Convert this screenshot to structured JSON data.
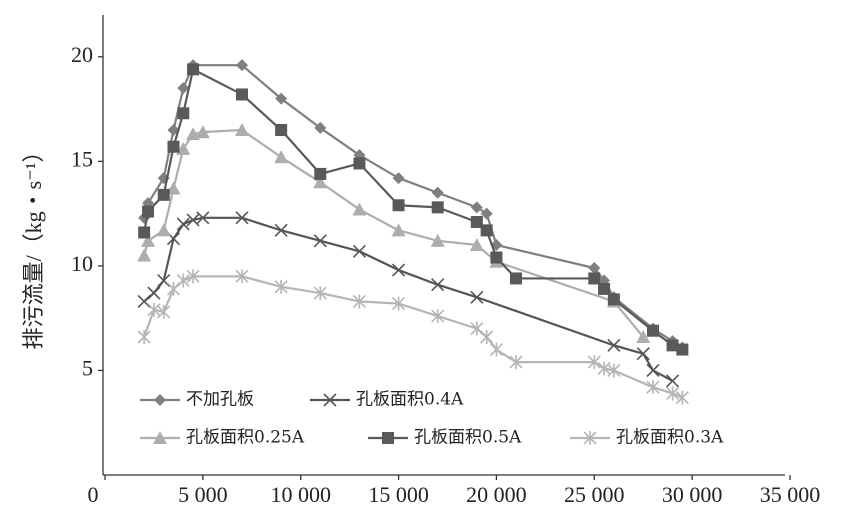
{
  "chart_data": {
    "type": "line",
    "y_label": "排污流量/（kg・s⁻¹）",
    "xlim": [
      0,
      35000
    ],
    "ylim": [
      0,
      22
    ],
    "xticks": [
      0,
      {
        "value": 5000,
        "label": "5 000"
      },
      {
        "value": 10000,
        "label": "10 000"
      },
      {
        "value": 15000,
        "label": "15 000"
      },
      {
        "value": 20000,
        "label": "20 000"
      },
      {
        "value": 25000,
        "label": "25 000"
      },
      {
        "value": 30000,
        "label": "30 000"
      },
      {
        "value": 35000,
        "label": "35 000"
      }
    ],
    "yticks": [
      5,
      10,
      15,
      20
    ],
    "grid": false,
    "series": [
      {
        "name": "不加孔板",
        "color": "#7f7f7f",
        "marker": "diamond",
        "x": [
          2000,
          2200,
          3000,
          3500,
          4000,
          4500,
          7000,
          9000,
          11000,
          13000,
          15000,
          17000,
          19000,
          19500,
          20000,
          25000,
          25500,
          26000,
          28000,
          29000,
          29500
        ],
        "values": [
          12.3,
          13.0,
          14.2,
          16.5,
          18.5,
          19.6,
          19.6,
          18.0,
          16.6,
          15.3,
          14.2,
          13.5,
          12.8,
          12.5,
          11.0,
          9.9,
          9.3,
          8.5,
          7.0,
          6.4,
          6.1
        ]
      },
      {
        "name": "孔板面积0.4A",
        "color": "#555555",
        "marker": "x",
        "x": [
          2000,
          2500,
          3000,
          3500,
          4000,
          4500,
          5000,
          7000,
          9000,
          11000,
          13000,
          15000,
          17000,
          19000,
          26000,
          27500,
          28000,
          29000
        ],
        "values": [
          8.3,
          8.7,
          9.3,
          11.3,
          12.0,
          12.2,
          12.3,
          12.3,
          11.7,
          11.2,
          10.7,
          9.8,
          9.1,
          8.5,
          6.2,
          5.8,
          5.0,
          4.5
        ]
      },
      {
        "name": "孔板面积0.25A",
        "color": "#adadad",
        "marker": "triangle",
        "x": [
          2000,
          2200,
          3000,
          3500,
          4000,
          4500,
          5000,
          7000,
          9000,
          11000,
          13000,
          15000,
          17000,
          19000,
          20000,
          26000,
          27500
        ],
        "values": [
          10.5,
          11.2,
          11.7,
          13.7,
          15.6,
          16.3,
          16.4,
          16.5,
          15.2,
          14.0,
          12.7,
          11.7,
          11.2,
          11.0,
          10.2,
          8.3,
          6.6
        ]
      },
      {
        "name": "孔板面积0.5A",
        "color": "#595959",
        "marker": "square",
        "x": [
          2000,
          2200,
          3000,
          3500,
          4000,
          4500,
          7000,
          9000,
          11000,
          13000,
          15000,
          17000,
          19000,
          19500,
          20000,
          21000,
          25000,
          25500,
          26000,
          28000,
          29000,
          29500
        ],
        "values": [
          11.6,
          12.6,
          13.4,
          15.7,
          17.3,
          19.4,
          18.2,
          16.5,
          14.4,
          14.9,
          12.9,
          12.8,
          12.1,
          11.7,
          10.4,
          9.4,
          9.4,
          8.9,
          8.4,
          6.9,
          6.2,
          6.0
        ]
      },
      {
        "name": "孔板面积0.3A",
        "color": "#b5b5b5",
        "marker": "asterisk",
        "x": [
          2000,
          2500,
          3000,
          3500,
          4000,
          4500,
          7000,
          9000,
          11000,
          13000,
          15000,
          17000,
          19000,
          19500,
          20000,
          21000,
          25000,
          25500,
          26000,
          28000,
          29000,
          29500
        ],
        "values": [
          6.6,
          7.9,
          7.8,
          8.9,
          9.3,
          9.5,
          9.5,
          9.0,
          8.7,
          8.3,
          8.2,
          7.6,
          7.0,
          6.6,
          6.0,
          5.4,
          5.4,
          5.1,
          5.0,
          4.2,
          3.9,
          3.7
        ]
      }
    ]
  }
}
